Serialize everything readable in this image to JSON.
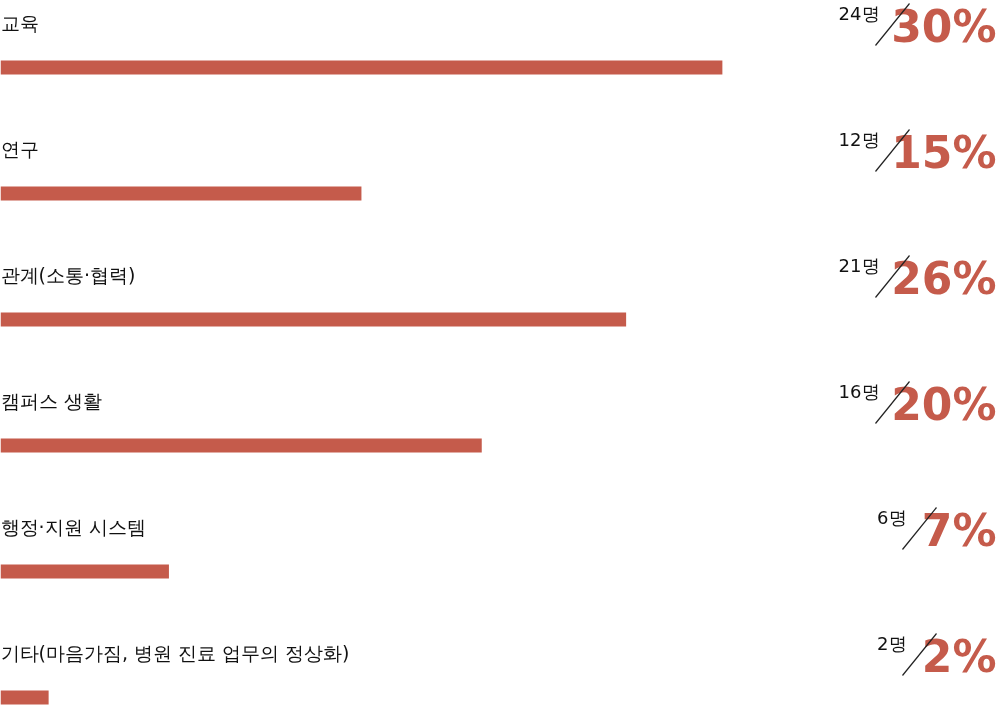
{
  "chart_data": {
    "type": "bar",
    "orientation": "horizontal",
    "categories": [
      "교육",
      "연구",
      "관계(소통·협력)",
      "캠퍼스 생활",
      "행정·지원 시스템",
      "기타(마음가짐, 병원 진료 업무의 정상화)"
    ],
    "values": [
      30,
      15,
      26,
      20,
      7,
      2
    ],
    "xlim": [
      0,
      41.6
    ],
    "value_labels": [
      "30%",
      "15%",
      "26%",
      "20%",
      "7%",
      "2%"
    ],
    "annotations": [
      "24명",
      "12명",
      "21명",
      "16명",
      "6명",
      "2명"
    ],
    "color": "#c55b4b"
  }
}
